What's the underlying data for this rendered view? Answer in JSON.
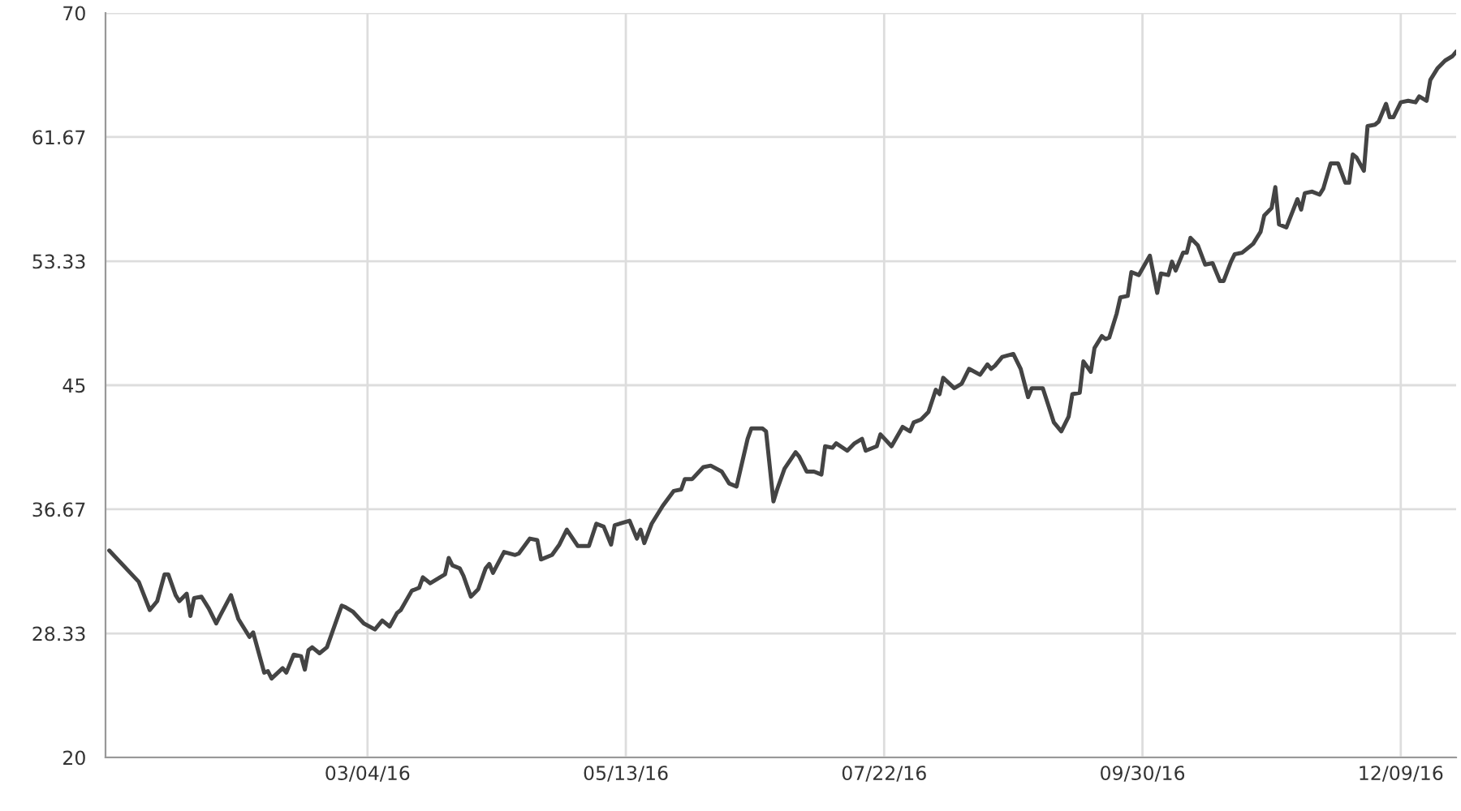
{
  "chart_data": {
    "type": "line",
    "color": "#444444",
    "grid": true,
    "marker": "none",
    "line_style": "solid",
    "xlim": [
      "2015-12-24",
      "2016-12-24"
    ],
    "xticks": [
      {
        "value": "2016-03-04",
        "label": "03/04/16"
      },
      {
        "value": "2016-05-13",
        "label": "05/13/16"
      },
      {
        "value": "2016-07-22",
        "label": "07/22/16"
      },
      {
        "value": "2016-09-30",
        "label": "09/30/16"
      },
      {
        "value": "2016-12-09",
        "label": "12/09/16"
      }
    ],
    "ylim": [
      20,
      70
    ],
    "yticks": [
      20,
      28.33,
      36.67,
      45,
      53.33,
      61.67,
      70
    ],
    "x": [
      "2015-12-25",
      "2016-01-02",
      "2016-01-05",
      "2016-01-07",
      "2016-01-09",
      "2016-01-10",
      "2016-01-12",
      "2016-01-13",
      "2016-01-15",
      "2016-01-16",
      "2016-01-17",
      "2016-01-19",
      "2016-01-21",
      "2016-01-23",
      "2016-01-24",
      "2016-01-27",
      "2016-01-29",
      "2016-02-01",
      "2016-02-02",
      "2016-02-05",
      "2016-02-06",
      "2016-02-07",
      "2016-02-10",
      "2016-02-11",
      "2016-02-13",
      "2016-02-15",
      "2016-02-16",
      "2016-02-17",
      "2016-02-18",
      "2016-02-20",
      "2016-02-22",
      "2016-02-26",
      "2016-02-27",
      "2016-02-29",
      "2016-03-03",
      "2016-03-06",
      "2016-03-08",
      "2016-03-10",
      "2016-03-12",
      "2016-03-13",
      "2016-03-16",
      "2016-03-18",
      "2016-03-19",
      "2016-03-21",
      "2016-03-25",
      "2016-03-26",
      "2016-03-27",
      "2016-03-29",
      "2016-03-30",
      "2016-04-01",
      "2016-04-03",
      "2016-04-05",
      "2016-04-06",
      "2016-04-07",
      "2016-04-10",
      "2016-04-13",
      "2016-04-14",
      "2016-04-17",
      "2016-04-19",
      "2016-04-20",
      "2016-04-23",
      "2016-04-25",
      "2016-04-27",
      "2016-04-30",
      "2016-05-03",
      "2016-05-05",
      "2016-05-07",
      "2016-05-09",
      "2016-05-10",
      "2016-05-14",
      "2016-05-16",
      "2016-05-17",
      "2016-05-18",
      "2016-05-20",
      "2016-05-23",
      "2016-05-26",
      "2016-05-28",
      "2016-05-29",
      "2016-05-31",
      "2016-06-03",
      "2016-06-05",
      "2016-06-08",
      "2016-06-10",
      "2016-06-12",
      "2016-06-15",
      "2016-06-16",
      "2016-06-19",
      "2016-06-20",
      "2016-06-22",
      "2016-06-23",
      "2016-06-25",
      "2016-06-28",
      "2016-06-29",
      "2016-07-01",
      "2016-07-03",
      "2016-07-05",
      "2016-07-06",
      "2016-07-08",
      "2016-07-09",
      "2016-07-12",
      "2016-07-14",
      "2016-07-16",
      "2016-07-17",
      "2016-07-20",
      "2016-07-21",
      "2016-07-24",
      "2016-07-27",
      "2016-07-29",
      "2016-07-30",
      "2016-08-01",
      "2016-08-03",
      "2016-08-05",
      "2016-08-06",
      "2016-08-07",
      "2016-08-10",
      "2016-08-12",
      "2016-08-14",
      "2016-08-17",
      "2016-08-19",
      "2016-08-20",
      "2016-08-21",
      "2016-08-23",
      "2016-08-26",
      "2016-08-28",
      "2016-08-30",
      "2016-08-31",
      "2016-09-03",
      "2016-09-06",
      "2016-09-08",
      "2016-09-10",
      "2016-09-11",
      "2016-09-13",
      "2016-09-14",
      "2016-09-16",
      "2016-09-17",
      "2016-09-19",
      "2016-09-20",
      "2016-09-21",
      "2016-09-23",
      "2016-09-24",
      "2016-09-26",
      "2016-09-27",
      "2016-09-29",
      "2016-10-02",
      "2016-10-04",
      "2016-10-05",
      "2016-10-07",
      "2016-10-08",
      "2016-10-09",
      "2016-10-11",
      "2016-10-12",
      "2016-10-13",
      "2016-10-15",
      "2016-10-17",
      "2016-10-19",
      "2016-10-21",
      "2016-10-22",
      "2016-10-24",
      "2016-10-25",
      "2016-10-27",
      "2016-10-30",
      "2016-11-01",
      "2016-11-02",
      "2016-11-04",
      "2016-11-05",
      "2016-11-06",
      "2016-11-08",
      "2016-11-11",
      "2016-11-12",
      "2016-11-13",
      "2016-11-15",
      "2016-11-17",
      "2016-11-18",
      "2016-11-20",
      "2016-11-22",
      "2016-11-24",
      "2016-11-25",
      "2016-11-26",
      "2016-11-27",
      "2016-11-29",
      "2016-11-30",
      "2016-12-02",
      "2016-12-03",
      "2016-12-05",
      "2016-12-06",
      "2016-12-07",
      "2016-12-09",
      "2016-12-11",
      "2016-12-13",
      "2016-12-14",
      "2016-12-16",
      "2016-12-17",
      "2016-12-19",
      "2016-12-21",
      "2016-12-23",
      "2016-12-24"
    ],
    "values": [
      33.9,
      31.8,
      29.9,
      30.5,
      32.3,
      32.3,
      30.9,
      30.5,
      31.0,
      29.5,
      30.7,
      30.8,
      30.0,
      29.0,
      29.5,
      30.9,
      29.3,
      28.1,
      28.4,
      25.7,
      25.8,
      25.3,
      26.0,
      25.7,
      26.9,
      26.8,
      25.9,
      27.2,
      27.4,
      27.0,
      27.4,
      30.2,
      30.1,
      29.8,
      29.0,
      28.6,
      29.2,
      28.8,
      29.7,
      29.9,
      31.2,
      31.4,
      32.1,
      31.7,
      32.3,
      33.4,
      32.9,
      32.7,
      32.2,
      30.8,
      31.3,
      32.7,
      33.0,
      32.4,
      33.8,
      33.6,
      33.7,
      34.7,
      34.6,
      33.3,
      33.6,
      34.3,
      35.3,
      34.2,
      34.2,
      35.7,
      35.5,
      34.3,
      35.6,
      35.9,
      34.7,
      35.3,
      34.4,
      35.7,
      36.9,
      37.9,
      38.0,
      38.7,
      38.7,
      39.5,
      39.6,
      39.2,
      38.4,
      38.2,
      41.4,
      42.1,
      42.1,
      41.9,
      37.2,
      38.0,
      39.4,
      40.5,
      40.2,
      39.2,
      39.2,
      39.0,
      40.9,
      40.8,
      41.1,
      40.6,
      41.1,
      41.4,
      40.6,
      40.9,
      41.7,
      40.9,
      42.2,
      41.9,
      42.5,
      42.7,
      43.2,
      44.7,
      44.4,
      45.5,
      44.8,
      45.1,
      46.1,
      45.7,
      46.4,
      46.1,
      46.3,
      46.9,
      47.1,
      46.1,
      44.2,
      44.8,
      44.8,
      42.5,
      41.9,
      42.9,
      44.4,
      44.5,
      46.6,
      45.9,
      47.5,
      48.3,
      48.1,
      48.2,
      49.8,
      50.9,
      51.0,
      52.6,
      52.4,
      53.7,
      51.2,
      52.5,
      52.4,
      53.3,
      52.7,
      53.9,
      53.9,
      54.9,
      54.4,
      53.1,
      53.2,
      52.0,
      52.0,
      53.3,
      53.8,
      53.9,
      54.5,
      55.3,
      56.4,
      56.9,
      58.3,
      55.8,
      55.6,
      57.5,
      56.8,
      57.9,
      58.0,
      57.8,
      58.2,
      59.9,
      59.9,
      58.6,
      58.6,
      60.5,
      60.3,
      59.4,
      62.4,
      62.5,
      62.7,
      63.9,
      63.0,
      63.0,
      64.0,
      64.1,
      64.0,
      64.4,
      64.1,
      65.5,
      66.3,
      66.8,
      67.1,
      67.4
    ]
  }
}
